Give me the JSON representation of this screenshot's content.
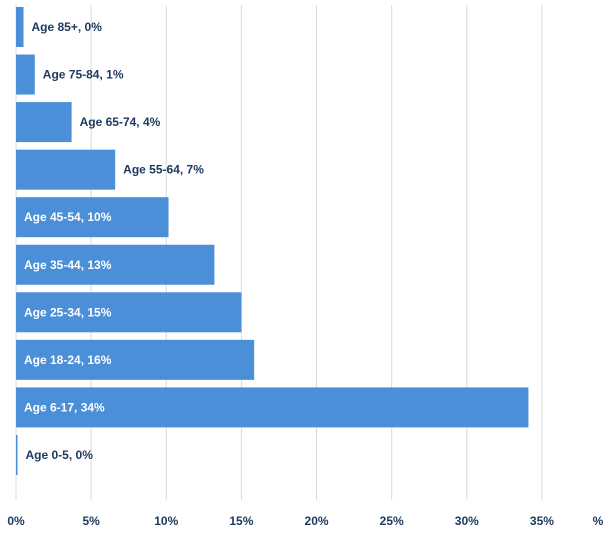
{
  "chart_data": {
    "type": "bar",
    "orientation": "horizontal",
    "categories": [
      "Age 85+",
      "Age 75-84",
      "Age 65-74",
      "Age 55-64",
      "Age 45-54",
      "Age 35-44",
      "Age 25-34",
      "Age 18-24",
      "Age 6-17",
      "Age 0-5"
    ],
    "values": [
      0.5,
      1.25,
      3.7,
      6.6,
      10.15,
      13.2,
      15.0,
      15.85,
      34.1,
      0.05
    ],
    "data_labels": [
      "Age 85+, 0%",
      "Age 75-84, 1%",
      "Age 65-74, 4%",
      "Age 55-64, 7%",
      "Age 45-54, 10%",
      "Age 35-44, 13%",
      "Age 25-34, 15%",
      "Age 18-24, 16%",
      "Age 6-17, 34%",
      "Age 0-5, 0%"
    ],
    "xlim": [
      0,
      37
    ],
    "x_ticks": [
      0,
      5,
      10,
      15,
      20,
      25,
      30,
      35
    ],
    "x_tick_labels": [
      "0%",
      "5%",
      "10%",
      "15%",
      "20%",
      "25%",
      "30%",
      "35%"
    ],
    "x_unit_label": "%",
    "grid": "vertical",
    "bar_color": "#4a8fd8",
    "grid_color": "#d9d9d9",
    "label_dark_color": "#1f3a60",
    "label_light_color": "#ffffff"
  }
}
